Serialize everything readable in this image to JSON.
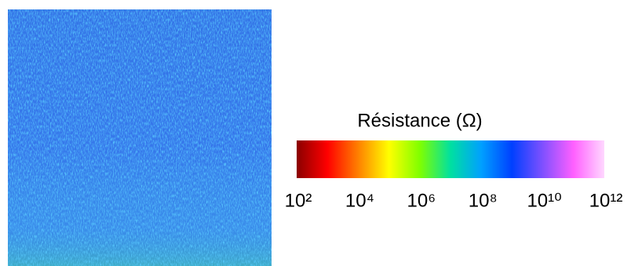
{
  "chart_data": {
    "type": "heatmap",
    "colorbar": {
      "title": "Résistance (Ω)",
      "log_scale": true,
      "clim": [
        100,
        1000000000000
      ],
      "cticks": [
        {
          "value": 100,
          "label": "10²"
        },
        {
          "value": 10000,
          "label": "10⁴"
        },
        {
          "value": 1000000,
          "label": "10⁶"
        },
        {
          "value": 100000000,
          "label": "10⁸"
        },
        {
          "value": 10000000000,
          "label": "10¹⁰"
        },
        {
          "value": 1000000000000,
          "label": "10¹²"
        }
      ],
      "colors": [
        "#8b0000",
        "#ff0000",
        "#ff8000",
        "#ffff00",
        "#80ff00",
        "#00e0a0",
        "#00a0ff",
        "#0040ff",
        "#8050ff",
        "#ff60ff",
        "#ffd8ff"
      ]
    }
  }
}
